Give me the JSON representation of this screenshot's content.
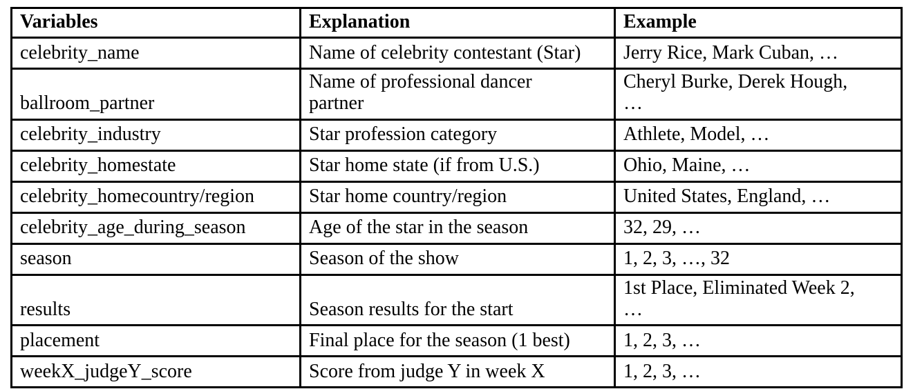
{
  "table": {
    "headers": [
      "Variables",
      "Explanation",
      "Example"
    ],
    "rows": [
      {
        "variable": "celebrity_name",
        "explanation": "Name of celebrity contestant (Star)",
        "example": "Jerry Rice, Mark Cuban, …"
      },
      {
        "variable": "ballroom_partner",
        "explanation": "Name of professional dancer\npartner",
        "example": "Cheryl Burke, Derek Hough,\n…"
      },
      {
        "variable": "celebrity_industry",
        "explanation": "Star profession category",
        "example": "Athlete, Model, …"
      },
      {
        "variable": "celebrity_homestate",
        "explanation": "Star home state (if from U.S.)",
        "example": "Ohio, Maine, …"
      },
      {
        "variable": "celebrity_homecountry/region",
        "explanation": "Star home country/region",
        "example": "United States, England, …"
      },
      {
        "variable": "celebrity_age_during_season",
        "explanation": "Age of the star in the season",
        "example": "32, 29, …"
      },
      {
        "variable": "season",
        "explanation": "Season of the show",
        "example": "1, 2, 3, …, 32"
      },
      {
        "variable": "results",
        "explanation": "Season results for the start",
        "example": "1st Place, Eliminated Week 2,\n…"
      },
      {
        "variable": "placement",
        "explanation": "Final place for the season (1 best)",
        "example": "1, 2, 3, …"
      },
      {
        "variable": "weekX_judgeY_score",
        "explanation": "Score from judge Y in week X",
        "example": "1, 2, 3, …"
      }
    ]
  },
  "colors": {
    "border": "#000000",
    "text": "#000000",
    "background": "#ffffff"
  }
}
